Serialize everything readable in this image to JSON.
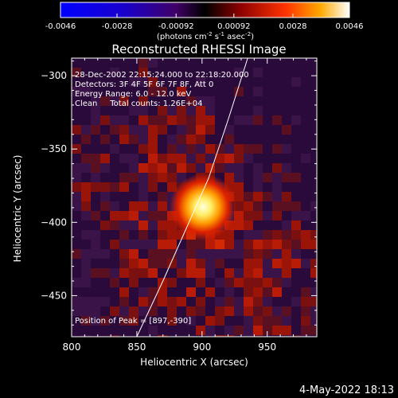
{
  "chart_data": {
    "type": "heatmap",
    "title": "Reconstructed RHESSI Image",
    "xlabel": "Heliocentric X (arcsec)",
    "ylabel": "Heliocentric Y (arcsec)",
    "xlim": [
      800,
      988
    ],
    "ylim": [
      -478,
      -288
    ],
    "x_ticks": [
      800,
      850,
      900,
      950
    ],
    "y_ticks": [
      -300,
      -350,
      -400,
      -450
    ],
    "colorbar": {
      "ticks": [
        "-0.0046",
        "-0.0028",
        "-0.00092",
        "0.00092",
        "0.0028",
        "0.0046"
      ],
      "range": [
        -0.0046,
        0.0046
      ],
      "unit_text": "(photons cm",
      "unit_exp1": "-2",
      "unit_mid": " s",
      "unit_exp2": "-1",
      "unit_mid2": " asec",
      "unit_exp3": "-2",
      "unit_end": ")"
    },
    "annotations": [
      "28-Dec-2002 22:15:24.000 to 22:18:20.000",
      "Detectors: 3F 4F 5F 6F 7F 8F, Att 0",
      "Energy Range: 6.0 - 12.0 keV",
      "Clean     Total counts: 1.26E+04"
    ],
    "peak_label": "Position of Peak = [897,-390]",
    "peak": [
      897,
      -390
    ],
    "limb_curve": [
      [
        850,
        -478
      ],
      [
        870,
        -440
      ],
      [
        890,
        -400
      ],
      [
        905,
        -370
      ],
      [
        920,
        -330
      ],
      [
        935,
        -288
      ]
    ]
  },
  "timestamp": "4-May-2022 18:13"
}
